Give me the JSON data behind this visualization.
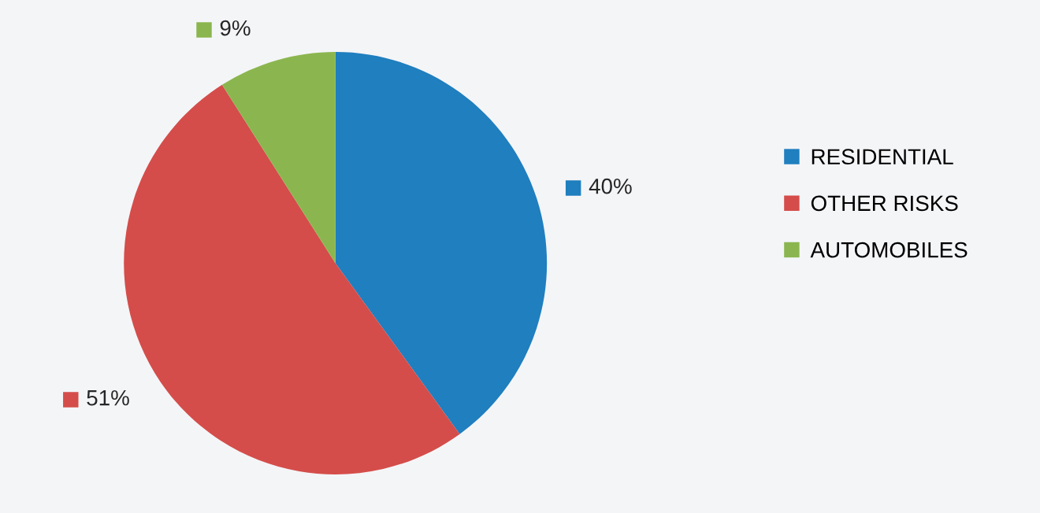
{
  "chart_data": {
    "type": "pie",
    "categories": [
      "RESIDENTIAL",
      "OTHER RISKS",
      "AUTOMOBILES"
    ],
    "values": [
      40,
      51,
      9
    ],
    "colors": [
      "#1f7fbf",
      "#d44d4a",
      "#8bb64f"
    ],
    "value_labels": [
      "40%",
      "51%",
      "9%"
    ],
    "legend": "right"
  }
}
